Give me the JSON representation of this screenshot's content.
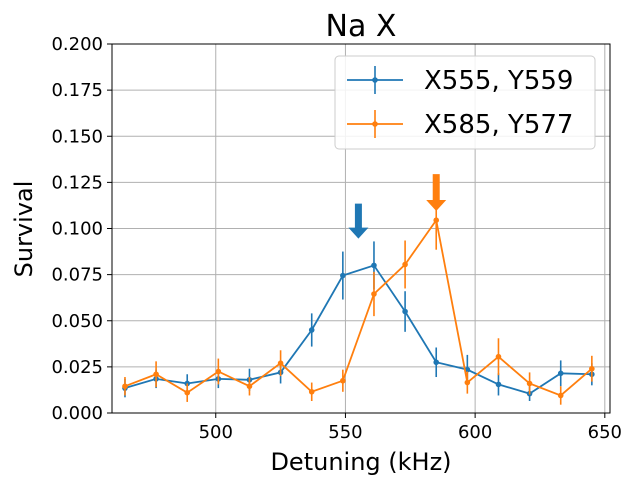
{
  "chart_data": {
    "type": "line",
    "title": "Na X",
    "xlabel": "Detuning (kHz)",
    "ylabel": "Survival",
    "xlim": [
      460,
      652
    ],
    "ylim": [
      0,
      0.2
    ],
    "xticks": [
      500,
      550,
      600,
      650
    ],
    "yticks": [
      0.0,
      0.025,
      0.05,
      0.075,
      0.1,
      0.125,
      0.15,
      0.175,
      0.2
    ],
    "xtick_labels": [
      "500",
      "550",
      "600",
      "650"
    ],
    "ytick_labels": [
      "0.000",
      "0.025",
      "0.050",
      "0.075",
      "0.100",
      "0.125",
      "0.150",
      "0.175",
      "0.200"
    ],
    "grid": true,
    "legend_position": "top-right",
    "series": [
      {
        "name": "X555, Y559",
        "color": "#1f77b4",
        "x": [
          465,
          477,
          489,
          501,
          513,
          525,
          537,
          549,
          561,
          573,
          585,
          597,
          609,
          621,
          633,
          645
        ],
        "y": [
          0.0135,
          0.0185,
          0.016,
          0.0185,
          0.018,
          0.022,
          0.045,
          0.0745,
          0.08,
          0.055,
          0.0275,
          0.0235,
          0.0155,
          0.0105,
          0.0215,
          0.021
        ],
        "yerr": [
          0.005,
          0.005,
          0.005,
          0.005,
          0.006,
          0.006,
          0.009,
          0.013,
          0.013,
          0.011,
          0.008,
          0.008,
          0.006,
          0.004,
          0.007,
          0.006
        ]
      },
      {
        "name": "X585, Y577",
        "color": "#ff7f0e",
        "x": [
          465,
          477,
          489,
          501,
          513,
          525,
          537,
          549,
          561,
          573,
          585,
          597,
          609,
          621,
          633,
          645
        ],
        "y": [
          0.0145,
          0.021,
          0.011,
          0.0225,
          0.0145,
          0.027,
          0.0115,
          0.0175,
          0.0645,
          0.0805,
          0.1045,
          0.0165,
          0.0305,
          0.016,
          0.0095,
          0.024
        ],
        "yerr": [
          0.005,
          0.007,
          0.005,
          0.007,
          0.005,
          0.007,
          0.005,
          0.006,
          0.012,
          0.013,
          0.016,
          0.006,
          0.01,
          0.006,
          0.005,
          0.007
        ]
      }
    ],
    "annotations": [
      {
        "type": "arrow",
        "x": 555,
        "y_tip": 0.0945,
        "y_tail": 0.1135,
        "color": "#1f77b4"
      },
      {
        "type": "arrow",
        "x": 585,
        "y_tip": 0.1095,
        "y_tail": 0.1295,
        "color": "#ff7f0e"
      }
    ]
  }
}
